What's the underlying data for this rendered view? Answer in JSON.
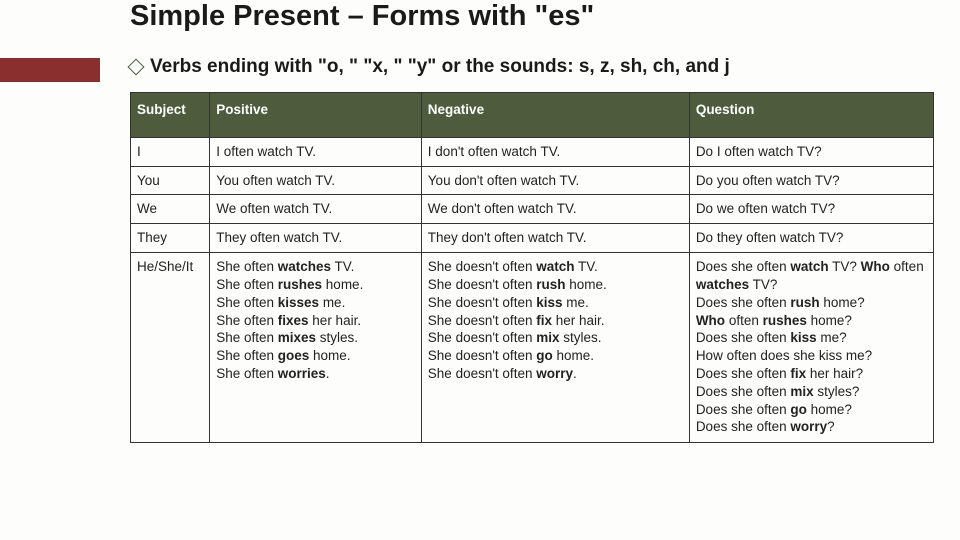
{
  "title": "Simple Present – Forms with \"es\"",
  "subtitle": "Verbs ending with \"o, \" \"x, \" \"y\" or the sounds: s, z, sh, ch, and j",
  "colors": {
    "header_bg": "#4e5b3d",
    "header_text": "#ffffff",
    "accent_bar": "#8b2e2e",
    "border": "#333333",
    "page_bg": "#fdfdfb",
    "text": "#222222"
  },
  "columns": [
    "Subject",
    "Positive",
    "Negative",
    "Question"
  ],
  "rows": [
    {
      "subject": "I",
      "positive": "I often watch TV.",
      "negative": "I don't often watch TV.",
      "question": "Do I often watch TV?"
    },
    {
      "subject": "You",
      "positive": "You often watch TV.",
      "negative": "You don't often watch TV.",
      "question": "Do you often watch TV?"
    },
    {
      "subject": "We",
      "positive": "We often watch TV.",
      "negative": "We don't often watch TV.",
      "question": "Do we often watch TV?"
    },
    {
      "subject": "They",
      "positive": "They often  watch TV.",
      "negative": "They don't often watch TV.",
      "question": "Do they often watch TV?"
    },
    {
      "subject": "He/She/It",
      "positive_html": "She often <b>watches</b> TV.<br>She often <b>rushes</b> home.<br>She often <b>kisses</b> me.<br>She often <b>fixes</b> her hair.<br>She often <b>mixes</b> styles.<br>She often <b>goes</b> home.<br>She often <b>worries</b>.",
      "negative_html": "She doesn't often <b>watch</b> TV.<br>She doesn't often <b>rush</b> home.<br>She doesn't often <b>kiss</b> me.<br>She doesn't often <b>fix</b> her hair.<br>She doesn't often <b>mix</b> styles.<br>She doesn't often <b>go</b> home.<br>She doesn't often <b>worry</b>.",
      "question_html": "Does she often <b>watch</b> TV? <b>Who</b> often <b>watches</b> TV?<br>Does she often <b>rush</b> home?<br><b>Who</b> often <b>rushes</b> home?<br>Does she often <b>kiss</b> me?<br>How often does she kiss me?<br>Does she often <b>fix</b> her hair?<br>Does she often <b>mix</b> styles?<br>Does she often <b>go</b> home?<br>Does she often <b>worry</b>?"
    }
  ]
}
